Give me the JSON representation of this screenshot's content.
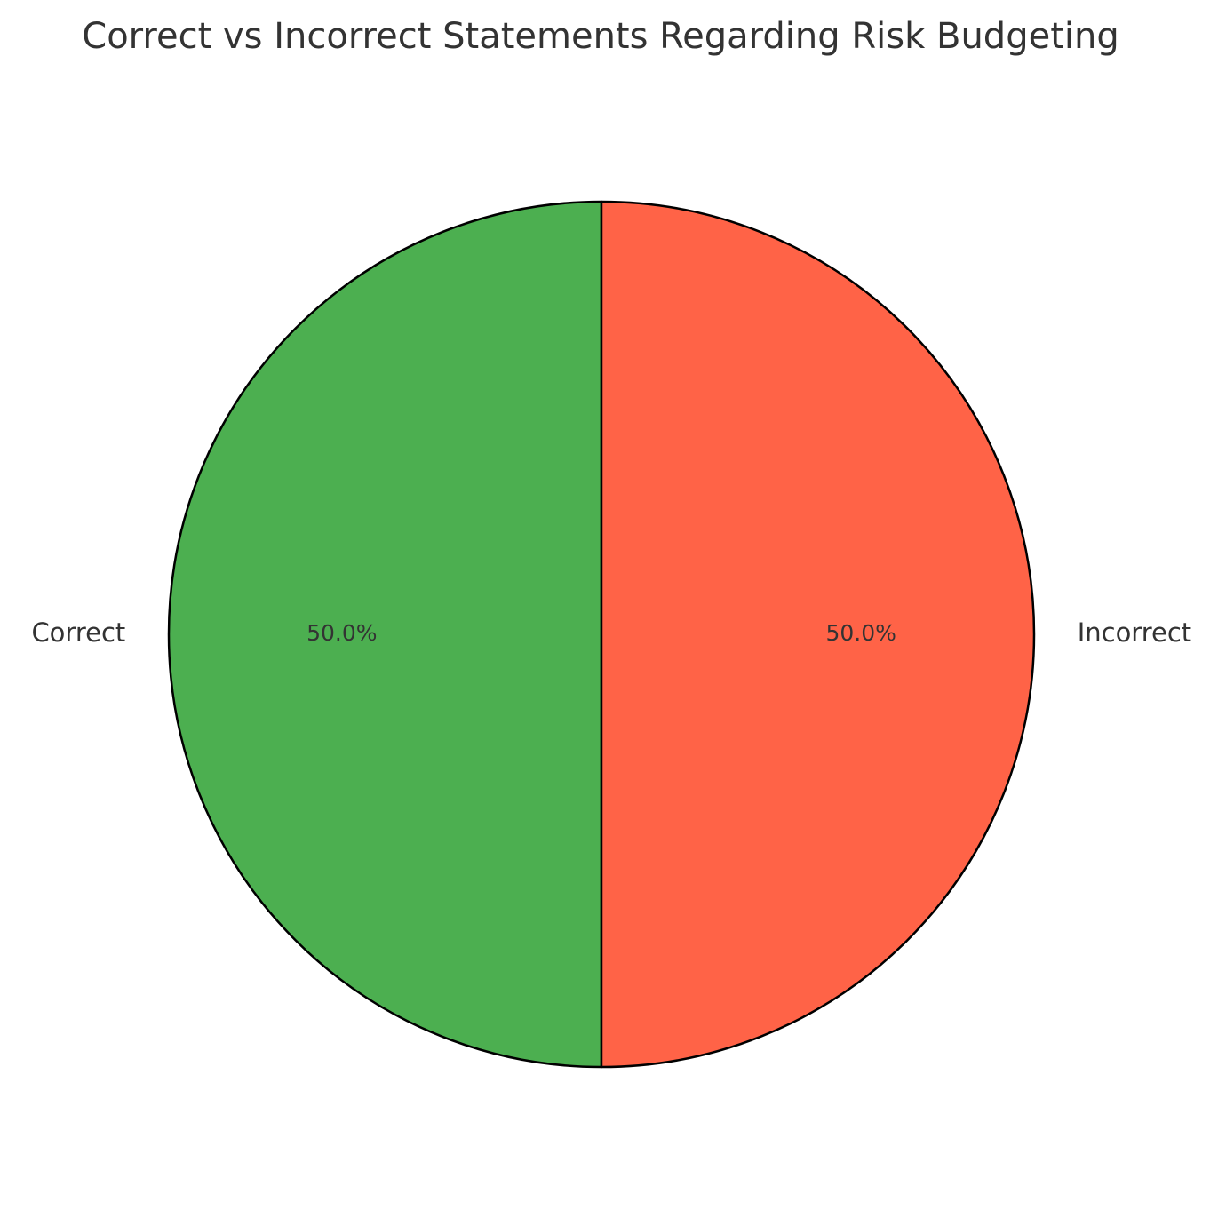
{
  "chart_data": {
    "type": "pie",
    "title": "Correct vs Incorrect Statements Regarding Risk Budgeting",
    "slices": [
      {
        "label": "Correct",
        "value": 50.0,
        "pct_label": "50.0%",
        "color": "#4caf50"
      },
      {
        "label": "Incorrect",
        "value": 50.0,
        "pct_label": "50.0%",
        "color": "#ff6347"
      }
    ],
    "edge_color": "#000000",
    "legend": "none"
  }
}
